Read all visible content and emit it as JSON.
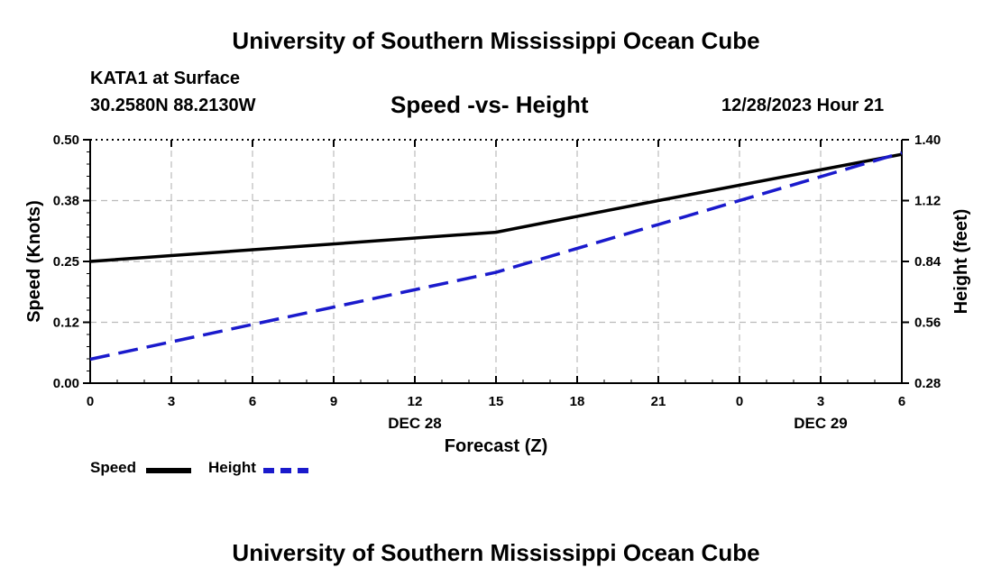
{
  "header": {
    "top_title": "University of Southern Mississippi Ocean Cube",
    "station": "KATA1 at Surface",
    "coords": "30.2580N  88.2130W",
    "chart_title": "Speed -vs- Height",
    "date_hour": "12/28/2023 Hour 21",
    "bottom_title": "University of Southern Mississippi Ocean Cube"
  },
  "legend": {
    "speed_label": "Speed",
    "height_label": "Height"
  },
  "colors": {
    "speed": "#000000",
    "height": "#1a1acc",
    "grid": "#bbbbbb"
  },
  "chart_data": {
    "type": "line",
    "title": "Speed -vs- Height",
    "xlabel": "Forecast (Z)",
    "ylabel": "Speed (Knots)",
    "y2label": "Height (feet)",
    "x": [
      0,
      3,
      6,
      9,
      12,
      15,
      18,
      21,
      24,
      27,
      30
    ],
    "x_tick_labels": [
      "0",
      "3",
      "6",
      "9",
      "12",
      "15",
      "18",
      "21",
      "0",
      "3",
      "6"
    ],
    "date_labels": [
      {
        "x": 12,
        "text": "DEC 28"
      },
      {
        "x": 27,
        "text": "DEC 29"
      }
    ],
    "xlim": [
      0,
      30
    ],
    "ylim": [
      0,
      0.5
    ],
    "y_ticks": [
      0.0,
      0.125,
      0.25,
      0.375,
      0.5
    ],
    "y_tick_labels": [
      "0.00",
      "0.12",
      "0.25",
      "0.38",
      "0.50"
    ],
    "y2lim": [
      0.28,
      1.4
    ],
    "y2_ticks": [
      0.28,
      0.56,
      0.84,
      1.12,
      1.4
    ],
    "y2_tick_labels": [
      "0.28",
      "0.56",
      "0.84",
      "1.12",
      "1.40"
    ],
    "grid": true,
    "legend_position": "bottom-left",
    "series": [
      {
        "name": "Speed",
        "axis": "left",
        "style": "solid",
        "x": [
          0,
          15,
          21,
          30
        ],
        "values": [
          0.25,
          0.31,
          0.375,
          0.47
        ]
      },
      {
        "name": "Height",
        "axis": "right",
        "style": "dashed",
        "x": [
          0,
          15,
          21,
          30
        ],
        "values": [
          0.39,
          0.79,
          1.01,
          1.34
        ]
      }
    ]
  }
}
